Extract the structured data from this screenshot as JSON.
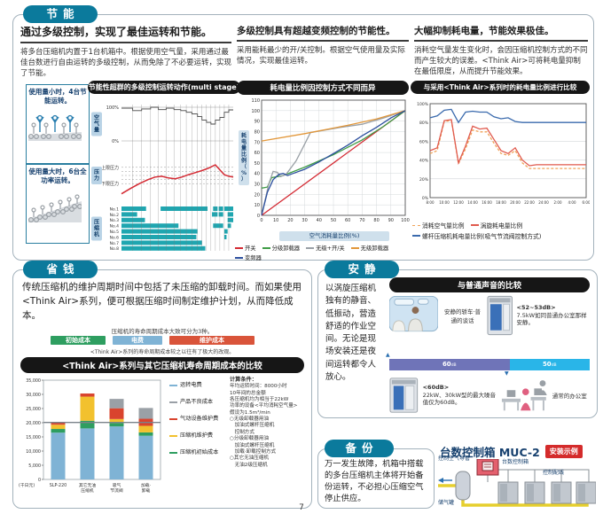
{
  "page": {
    "number": "7"
  },
  "energy": {
    "badge": "节能",
    "cols": [
      {
        "heading": "通过多级控制，实现了最佳运转和节能。",
        "body": "将多台压缩机内置于1台机箱中。根据使用空气量，采用通过最佳台数进行自由运转的多级控制，从而免除了不必要运转，实现了节能。"
      },
      {
        "heading": "多级控制具有超越变频控制的节能性。",
        "body": "采用能耗最少的开/关控制。根据空气使用量及实际情况，实现最佳运转。"
      },
      {
        "heading": "大幅抑制耗电量，节能效果极佳。",
        "body": "消耗空气量发生变化时，会因压缩机控制方式的不同而产生较大的误差。<Think Air>可将耗电量抑制在最低限度，从而提升节能效果。"
      }
    ],
    "box1": "使用量小时，4台节能运转。",
    "box2": "使用量大时，6台全功率运转。"
  },
  "save": {
    "badge": "省钱",
    "body": "传统压缩机的维护周期时间中包括了未压缩的卸载时间。而如果使用<Think Air>系列，便可根据压缩时间制定维护计划，从而降低成本。",
    "note1": "压缩机的寿命周期成本大致可分为3种。",
    "cost_labels": [
      "初始成本",
      "电费",
      "维护成本"
    ],
    "cost_colors": [
      "#2e9e60",
      "#7fb3d5",
      "#d9543a"
    ],
    "note2": "<Think Air>系列的寿命周期成本较之以往有了极大的改观。"
  },
  "quiet": {
    "badge": "安静",
    "body": "以涡旋压缩机独有的静音、低振动，营造舒适的作业空间。无论是现场安装还是夜间运转都令人放心。",
    "chart_title": "与普通声音的比较",
    "row1_caption": "安静的轿车·普通的谈话",
    "row1_db": "<52~53dB>",
    "row1_text": "7.5kW如同普通办公室那样安静。",
    "row2_db": "<60dB>",
    "row2_text": "22kW、30kW型的最大噪音值仅为60dB。",
    "row2_caption": "通常的办公室"
  },
  "backup": {
    "badge": "备份",
    "body": "万一发生故障，机箱中搭载的多台压缩机主体将开始备份运转，不必担心压缩空气停止供应。"
  },
  "muc": {
    "title": "台数控制箱 MUC-2",
    "badge": "安装示例",
    "labels": {
      "air_pipe": "控制空气导管",
      "control_box": "台数控制箱",
      "wiring": "控制配线",
      "tank": "储气罐"
    }
  },
  "chart_data": [
    {
      "id": "multistage",
      "type": "line",
      "title": "节能性超群的多级控制运转动作(multi stage)",
      "row_labels": [
        "空气量",
        "压力",
        "压缩机"
      ],
      "air_ticks": [
        "100%",
        "0%"
      ],
      "pressure_ticks": [
        "上限压力",
        "下限压力"
      ],
      "guides": [
        10,
        18,
        26,
        33,
        40,
        47,
        53,
        58,
        63,
        68,
        72,
        76,
        80,
        84,
        88,
        92,
        96
      ],
      "air_steps": [
        [
          0,
          97
        ],
        [
          10,
          97
        ],
        [
          10,
          90
        ],
        [
          18,
          90
        ],
        [
          18,
          95
        ],
        [
          26,
          95
        ],
        [
          26,
          100
        ],
        [
          33,
          100
        ],
        [
          33,
          93
        ],
        [
          40,
          93
        ],
        [
          40,
          97
        ],
        [
          47,
          97
        ],
        [
          47,
          93
        ],
        [
          53,
          93
        ],
        [
          53,
          90
        ],
        [
          58,
          90
        ],
        [
          58,
          85
        ],
        [
          63,
          85
        ],
        [
          63,
          80
        ],
        [
          68,
          80
        ],
        [
          68,
          72
        ],
        [
          72,
          72
        ],
        [
          72,
          62
        ],
        [
          76,
          62
        ],
        [
          76,
          55
        ],
        [
          80,
          55
        ],
        [
          80,
          50
        ],
        [
          84,
          50
        ],
        [
          84,
          62
        ],
        [
          88,
          62
        ],
        [
          88,
          70
        ],
        [
          92,
          70
        ],
        [
          92,
          85
        ],
        [
          96,
          85
        ],
        [
          96,
          92
        ],
        [
          100,
          92
        ]
      ],
      "pressure_curve": [
        [
          0,
          5
        ],
        [
          8,
          18
        ],
        [
          16,
          30
        ],
        [
          24,
          40
        ],
        [
          30,
          46
        ],
        [
          36,
          48
        ],
        [
          42,
          44
        ],
        [
          48,
          42
        ],
        [
          54,
          46
        ],
        [
          60,
          52
        ],
        [
          66,
          57
        ],
        [
          72,
          62
        ],
        [
          78,
          68
        ],
        [
          84,
          76
        ],
        [
          88,
          64
        ],
        [
          92,
          52
        ],
        [
          96,
          48
        ],
        [
          100,
          46
        ]
      ],
      "pressure_limits": {
        "upper": 70,
        "lower": 30
      },
      "compressors": [
        {
          "label": "No.1",
          "segments": [
            [
              0,
              22
            ],
            [
              35,
              77
            ],
            [
              82,
              86
            ],
            [
              87,
              91
            ],
            [
              92,
              100
            ]
          ]
        },
        {
          "label": "No.2",
          "segments": [
            [
              0,
              14
            ],
            [
              81,
              86
            ],
            [
              87,
              91
            ],
            [
              95,
              100
            ]
          ]
        },
        {
          "label": "No.3",
          "segments": [
            [
              0,
              21
            ],
            [
              95,
              100
            ]
          ]
        },
        {
          "label": "No.4",
          "segments": [
            [
              0,
              51
            ],
            [
              82,
              91
            ],
            [
              95,
              98
            ]
          ]
        },
        {
          "label": "No.5",
          "segments": [
            [
              0,
              68
            ],
            [
              92,
              95
            ]
          ]
        },
        {
          "label": "No.6",
          "segments": [
            [
              0,
              67
            ],
            [
              92,
              94
            ]
          ]
        },
        {
          "label": "No.7",
          "segments": [
            [
              0,
              72
            ]
          ]
        },
        {
          "label": "No.8",
          "segments": [
            [
              0,
              75
            ]
          ]
        }
      ],
      "bar_color": "#1fa6b0"
    },
    {
      "id": "control-compare",
      "type": "line",
      "title": "耗电量比例因控制方式不同而异",
      "xlabel": "空气消耗量比例(%)",
      "ylabel": "耗电量比例（%）",
      "xlim": [
        0,
        100
      ],
      "ylim": [
        0,
        110
      ],
      "xticks": [
        0,
        10,
        20,
        30,
        40,
        50,
        60,
        70,
        80,
        90,
        100
      ],
      "yticks": [
        0,
        10,
        20,
        30,
        40,
        50,
        60,
        70,
        80,
        90,
        100,
        110
      ],
      "series": [
        {
          "name": "开关",
          "color": "#d42a33",
          "points": [
            [
              0,
              0
            ],
            [
              100,
              100
            ]
          ]
        },
        {
          "name": "分级卸载器",
          "color": "#3f9c46",
          "points": [
            [
              0,
              26
            ],
            [
              4,
              27
            ],
            [
              7,
              36
            ],
            [
              15,
              38
            ],
            [
              30,
              46
            ],
            [
              50,
              58
            ],
            [
              70,
              72
            ],
            [
              85,
              85
            ],
            [
              100,
              100
            ]
          ]
        },
        {
          "name": "无级+开/关",
          "color": "#9aa0a6",
          "points": [
            [
              0,
              0
            ],
            [
              5,
              30
            ],
            [
              8,
              42
            ],
            [
              11,
              41
            ],
            [
              13,
              37
            ],
            [
              17,
              39
            ],
            [
              24,
              52
            ],
            [
              30,
              68
            ],
            [
              34,
              79
            ],
            [
              38,
              80
            ],
            [
              55,
              84
            ],
            [
              70,
              87
            ],
            [
              85,
              93
            ],
            [
              100,
              100
            ]
          ]
        },
        {
          "name": "无级卸载器",
          "color": "#e2973a",
          "points": [
            [
              0,
              71
            ],
            [
              30,
              78
            ],
            [
              60,
              86
            ],
            [
              80,
              92
            ],
            [
              100,
              100
            ]
          ]
        },
        {
          "name": "变频器",
          "color": "#2c4f9e",
          "points": [
            [
              0,
              0
            ],
            [
              4,
              22
            ],
            [
              8,
              34
            ],
            [
              12,
              39
            ],
            [
              15,
              40
            ],
            [
              18,
              38
            ],
            [
              22,
              40
            ],
            [
              30,
              44
            ],
            [
              40,
              51
            ],
            [
              50,
              59
            ],
            [
              60,
              67
            ],
            [
              70,
              76
            ],
            [
              80,
              84
            ],
            [
              90,
              93
            ],
            [
              100,
              100
            ]
          ]
        }
      ]
    },
    {
      "id": "thinkair-compare",
      "type": "line",
      "title": "与采用<Think Air>系列时的耗电量比例进行比较",
      "ytick_labels": [
        "0%",
        "20%",
        "40%",
        "60%",
        "80%",
        "100%"
      ],
      "yticks": [
        0,
        20,
        40,
        60,
        80,
        100
      ],
      "xticks": [
        "8:00",
        "10:00",
        "12:00",
        "14:00",
        "16:00",
        "18:00",
        "20:00",
        "22:00",
        "24:00",
        "2:00",
        "4:00",
        "6:00"
      ],
      "series": [
        {
          "name": "消耗空气量比例",
          "color": "#f0a258",
          "dash": true,
          "values": [
            47,
            50,
            81,
            82,
            36,
            52,
            72,
            70,
            70,
            58,
            47,
            45,
            50,
            37,
            31,
            31,
            31,
            31,
            31,
            31,
            31,
            31,
            31
          ]
        },
        {
          "name": "涡旋耗电量比例",
          "color": "#e05a4e",
          "values": [
            50,
            53,
            82,
            83,
            37,
            55,
            76,
            73,
            74,
            62,
            50,
            47,
            53,
            40,
            34,
            35,
            35,
            35,
            35,
            35,
            35,
            35,
            35
          ]
        },
        {
          "name": "螺杆压缩机耗电量比例(吸气节流阀控制方式)",
          "color": "#3a6aad",
          "values": [
            85,
            87,
            93,
            94,
            80,
            91,
            92,
            91,
            91,
            86,
            84,
            85,
            81,
            80,
            80,
            80,
            80,
            80,
            80,
            80,
            80,
            80,
            80
          ]
        }
      ]
    },
    {
      "id": "lifecycle",
      "type": "bar",
      "title": "<Think Air>系列与其它压缩机寿命周期成本的比较",
      "unit": "(千日元)",
      "categories": [
        "SLP-220",
        "其它无油\n压缩机",
        "吸气\n节流阀",
        "加载·\n卸载"
      ],
      "ylim": [
        0,
        35000
      ],
      "ytick_labels": [
        "0",
        "5,000",
        "10,000",
        "15,000",
        "20,000",
        "25,000",
        "30,000",
        "35,000"
      ],
      "yticks": [
        0,
        5000,
        10000,
        15000,
        20000,
        25000,
        30000,
        35000
      ],
      "reference_line": 20100,
      "stack_order_bottom_to_top": [
        {
          "name": "运转电费",
          "color": "#7fb3d5",
          "values": [
            16500,
            18000,
            18700,
            15400
          ]
        },
        {
          "name": "压缩机初始成本",
          "color": "#2e9e60",
          "values": [
            1300,
            2700,
            1200,
            1200
          ]
        },
        {
          "name": "压缩机维护费",
          "color": "#f2c12e",
          "values": [
            1500,
            8500,
            1400,
            2300
          ]
        },
        {
          "name": "气动设备维护费",
          "color": "#d9442e",
          "values": [
            800,
            1100,
            3800,
            2500
          ]
        },
        {
          "name": "产品不良成本",
          "color": "#9aa0a6",
          "values": [
            0,
            0,
            3300,
            3800
          ]
        }
      ],
      "legend": [
        {
          "name": "运转电费",
          "color": "#7fb3d5"
        },
        {
          "name": "产品不良成本",
          "color": "#9aa0a6"
        },
        {
          "name": "气动设备维护费",
          "color": "#d9442e"
        },
        {
          "name": "压缩机维护费",
          "color": "#f2c12e"
        },
        {
          "name": "压缩机初始成本",
          "color": "#2e9e60"
        }
      ],
      "conditions_heading": "计算条件：",
      "conditions": [
        "年均运转时间：8000小时",
        "10年间的总金额",
        "各压缩机均为相当于22kW",
        "功率的设备<平均消耗空气量>",
        "假设为1.5m³/min",
        "○无级卸载器用油",
        "　加油式螺杆压缩机",
        "　控制方式",
        "○分级卸载器用油",
        "　加油式螺杆压缩机",
        "　加载·卸载控制方式",
        "○其它无油压缩机",
        "　无油2级压缩机"
      ]
    },
    {
      "id": "sound-bar",
      "type": "bar",
      "segments": [
        {
          "db": "60",
          "unit": "dB",
          "pct": 60,
          "color": "#6f74b8"
        },
        {
          "db": "50",
          "unit": "dB",
          "pct": 40,
          "color": "#29b5e8"
        }
      ]
    }
  ]
}
